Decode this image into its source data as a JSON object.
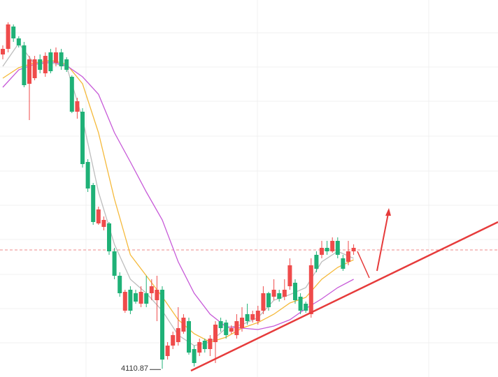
{
  "chart_data": {
    "type": "candlestick",
    "ylim": [
      4105,
      4375
    ],
    "up_color": "#ef4b4b",
    "down_color": "#1fb177",
    "grid_y": [
      4351.5,
      4327,
      4302.5,
      4277.5,
      4252.5,
      4228,
      4203.5,
      4178.5,
      4154,
      4129.5
    ],
    "reference_line": 4196,
    "ohlc": [
      [
        4336,
        4342.5,
        4332.5,
        4340
      ],
      [
        4340,
        4359,
        4337.5,
        4357.5
      ],
      [
        4356,
        4357.5,
        4345,
        4347.5
      ],
      [
        4347.5,
        4349,
        4341,
        4342.5
      ],
      [
        4342.5,
        4345,
        4312.5,
        4314
      ],
      [
        4315,
        4335,
        4289,
        4332.5
      ],
      [
        4319,
        4335,
        4317.5,
        4332.5
      ],
      [
        4332.5,
        4336,
        4322.5,
        4325
      ],
      [
        4322.5,
        4337.5,
        4320,
        4335
      ],
      [
        4337.5,
        4340,
        4322.5,
        4324
      ],
      [
        4330,
        4341,
        4327.5,
        4337.5
      ],
      [
        4337.5,
        4340,
        4325,
        4327.5
      ],
      [
        4332.5,
        4334,
        4323.5,
        4325
      ],
      [
        4320,
        4321,
        4294,
        4295
      ],
      [
        4295,
        4305,
        4290,
        4302.5
      ],
      [
        4295,
        4297.5,
        4255,
        4257.5
      ],
      [
        4259,
        4261,
        4237.5,
        4240
      ],
      [
        4242.5,
        4244,
        4214,
        4216
      ],
      [
        4215,
        4227,
        4214,
        4225
      ],
      [
        4212.5,
        4220,
        4210,
        4217.5
      ],
      [
        4215,
        4216,
        4192.5,
        4195
      ],
      [
        4195,
        4197.5,
        4175,
        4177.5
      ],
      [
        4177.5,
        4180,
        4162.5,
        4165
      ],
      [
        4152.5,
        4167.5,
        4151,
        4166
      ],
      [
        4167.5,
        4170,
        4150,
        4152.5
      ],
      [
        4165,
        4167.5,
        4157.5,
        4159
      ],
      [
        4157.5,
        4170,
        4155,
        4166
      ],
      [
        4165,
        4177.5,
        4155,
        4157.5
      ],
      [
        4165,
        4175,
        4160,
        4170
      ],
      [
        4160,
        4177.5,
        4145,
        4167.5
      ],
      [
        4167.5,
        4170,
        4110.87,
        4117.5
      ],
      [
        4120,
        4130,
        4117.5,
        4127.5
      ],
      [
        4127.5,
        4137.5,
        4125,
        4135
      ],
      [
        4130,
        4155,
        4127.5,
        4140
      ],
      [
        4137.5,
        4150,
        4136,
        4147.5
      ],
      [
        4145,
        4147.5,
        4121,
        4122.5
      ],
      [
        4125,
        4127.5,
        4112.5,
        4115
      ],
      [
        4122.5,
        4132.5,
        4120,
        4130
      ],
      [
        4131,
        4132.5,
        4122.5,
        4125
      ],
      [
        4125,
        4135,
        4120,
        4132.5
      ],
      [
        4130,
        4145,
        4115,
        4142.5
      ],
      [
        4145,
        4147.5,
        4137.5,
        4140
      ],
      [
        4144,
        4146,
        4132.5,
        4135
      ],
      [
        4137.5,
        4142,
        4136,
        4140
      ],
      [
        4135,
        4150,
        4132.5,
        4145
      ],
      [
        4140,
        4155,
        4137.5,
        4147.5
      ],
      [
        4150,
        4157.5,
        4142.5,
        4145
      ],
      [
        4146,
        4152.5,
        4144,
        4150
      ],
      [
        4145,
        4156,
        4142.5,
        4152.5
      ],
      [
        4152.5,
        4170,
        4150,
        4165
      ],
      [
        4165,
        4166,
        4152.5,
        4155
      ],
      [
        4162.5,
        4175,
        4160,
        4167.5
      ],
      [
        4165,
        4167.5,
        4159,
        4161
      ],
      [
        4162.5,
        4175,
        4160,
        4167.5
      ],
      [
        4170,
        4190,
        4167.5,
        4185
      ],
      [
        4172.5,
        4175,
        4157.5,
        4160
      ],
      [
        4162.5,
        4165,
        4150,
        4152.5
      ],
      [
        4157.5,
        4159,
        4151,
        4152.5
      ],
      [
        4150,
        4190,
        4147.5,
        4185
      ],
      [
        4192.5,
        4195,
        4180,
        4182.5
      ],
      [
        4192.5,
        4202.5,
        4190,
        4197.5
      ],
      [
        4197.5,
        4202.5,
        4192.5,
        4195
      ],
      [
        4195,
        4205,
        4194,
        4202.5
      ],
      [
        4202.5,
        4205,
        4190,
        4192.5
      ],
      [
        4190,
        4192.5,
        4181,
        4182.5
      ],
      [
        4187.5,
        4202.5,
        4185,
        4195
      ],
      [
        4195,
        4200,
        4192.5,
        4197.5
      ]
    ],
    "series": [
      {
        "color": "#bdbdbd",
        "x": [
          0,
          3,
          6,
          9,
          12,
          15,
          18,
          21,
          24,
          27,
          30,
          33,
          36,
          39,
          42,
          45,
          48,
          51,
          54,
          57,
          60,
          63,
          66
        ],
        "values": [
          4327.5,
          4344,
          4329,
          4330,
          4327.5,
          4290,
          4237.5,
          4200,
          4175,
          4165,
          4152.5,
          4135,
          4127.5,
          4130,
          4140,
          4142.5,
          4147.5,
          4160,
          4164,
          4169,
          4187.5,
          4195,
          4190
        ]
      },
      {
        "color": "#f5b93a",
        "x": [
          0,
          3,
          6,
          9,
          12,
          15,
          18,
          21,
          24,
          27,
          30,
          33,
          36,
          39,
          42,
          45,
          48,
          51,
          54,
          57,
          60,
          63,
          66
        ],
        "values": [
          4319,
          4326.5,
          4330,
          4332,
          4329,
          4315,
          4280,
          4232.5,
          4192.5,
          4177.5,
          4162.5,
          4146,
          4136,
          4130,
          4133.5,
          4140,
          4144,
          4150,
          4158,
          4162,
          4175,
          4183.5,
          4189
        ]
      },
      {
        "color": "#c75ad8",
        "x": [
          0,
          3,
          6,
          9,
          12,
          15,
          18,
          21,
          24,
          27,
          30,
          33,
          36,
          39,
          42,
          45,
          48,
          51,
          54,
          57,
          60,
          63,
          66
        ],
        "values": [
          4312.5,
          4325,
          4329,
          4331,
          4328,
          4320,
          4307.5,
          4280,
          4259,
          4237.5,
          4217.5,
          4187.5,
          4165,
          4150,
          4141,
          4140,
          4139,
          4141.5,
          4146,
          4154,
          4161,
          4169,
          4175
        ]
      }
    ]
  }
}
